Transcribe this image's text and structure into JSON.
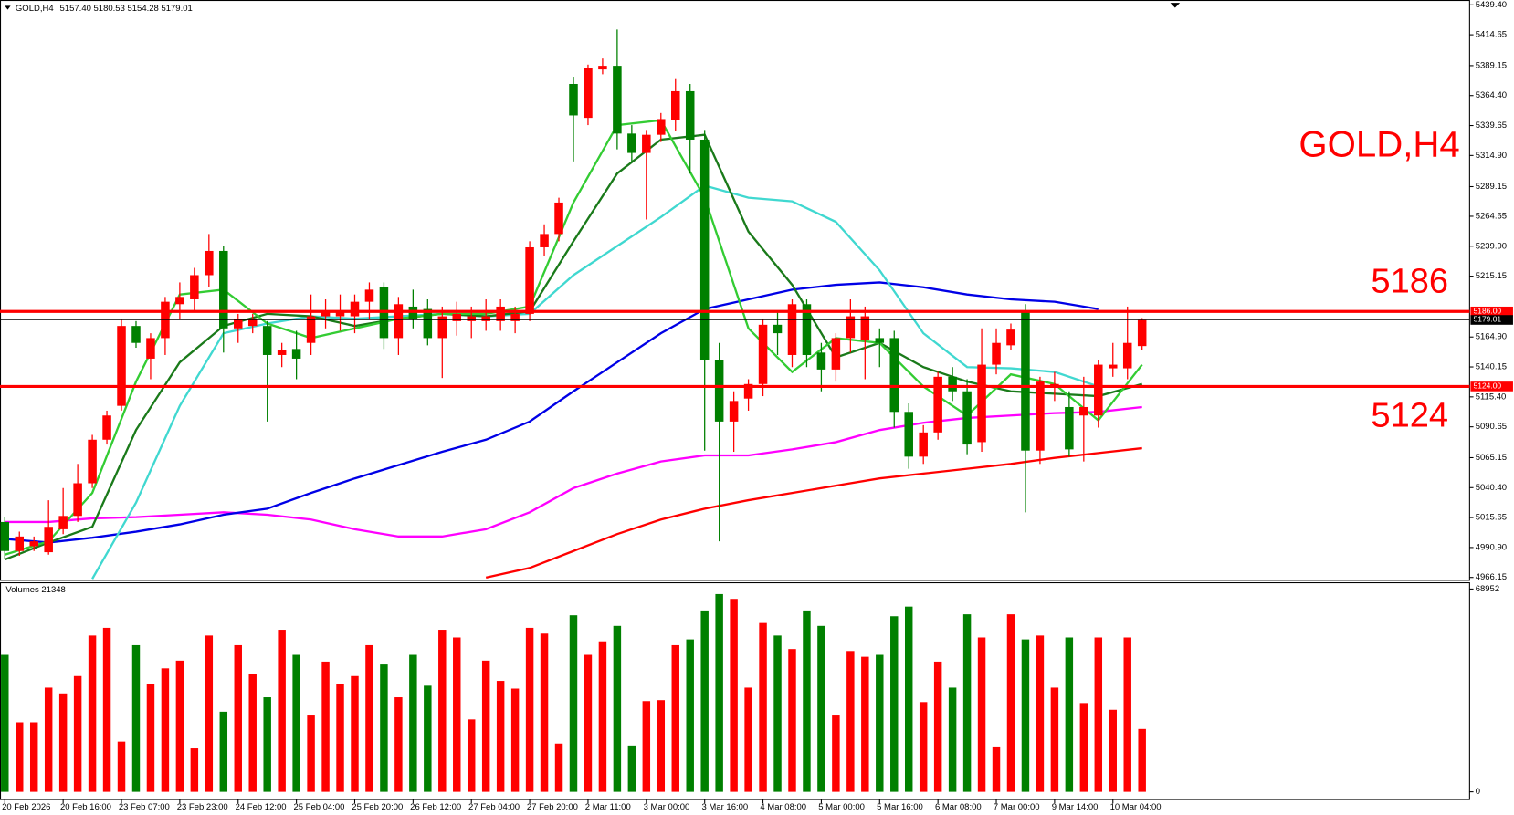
{
  "chart_data": {
    "type": "candlestick",
    "title": "GOLD,H4",
    "header_ohlc": "5157.40 5180.53 5154.28 5179.01",
    "volume_title": "Volumes 21348",
    "up_color": "#ff0000",
    "down_color": "#008000",
    "x_labels": [
      "20 Feb 2026",
      "20 Feb 16:00",
      "23 Feb 07:00",
      "23 Feb 23:00",
      "24 Feb 12:00",
      "25 Feb 04:00",
      "25 Feb 20:00",
      "26 Feb 12:00",
      "27 Feb 04:00",
      "27 Feb 20:00",
      "2 Mar 11:00",
      "3 Mar 00:00",
      "3 Mar 16:00",
      "4 Mar 08:00",
      "5 Mar 00:00",
      "5 Mar 16:00",
      "6 Mar 08:00",
      "7 Mar 00:00",
      "9 Mar 14:00",
      "10 Mar 04:00"
    ],
    "open": [
      5012,
      4988,
      4992,
      4987,
      5006,
      5017,
      5044,
      5080,
      5108,
      5174,
      5147,
      5164,
      5192,
      5196,
      5216,
      5236,
      5172,
      5174,
      5174,
      5150,
      5155,
      5160,
      5182,
      5182,
      5182,
      5194,
      5206,
      5164,
      5190,
      5188,
      5164,
      5178,
      5178,
      5178,
      5178,
      5178,
      5184,
      5239,
      5250,
      5374,
      5346,
      5386,
      5389,
      5333,
      5317,
      5332,
      5344,
      5368,
      5328,
      5146,
      5095,
      5114,
      5126,
      5175,
      5150,
      5192,
      5152,
      5138,
      5164,
      5162,
      5164,
      5164,
      5103,
      5066,
      5086,
      5132,
      5120,
      5078,
      5142,
      5158,
      5186,
      5071,
      5124,
      5107,
      5100,
      5100,
      5139,
      5139,
      5157.4
    ],
    "high": [
      5016,
      5004,
      5000,
      5030,
      5040,
      5060,
      5084,
      5104,
      5180,
      5178,
      5168,
      5198,
      5210,
      5222,
      5250,
      5240,
      5184,
      5184,
      5178,
      5160,
      5170,
      5200,
      5196,
      5200,
      5200,
      5210,
      5210,
      5198,
      5204,
      5196,
      5190,
      5194,
      5190,
      5196,
      5196,
      5190,
      5244,
      5258,
      5280,
      5380,
      5390,
      5395,
      5419,
      5340,
      5336,
      5350,
      5378,
      5374,
      5336,
      5160,
      5120,
      5130,
      5180,
      5185,
      5196,
      5196,
      5160,
      5168,
      5196,
      5190,
      5172,
      5170,
      5110,
      5092,
      5136,
      5140,
      5130,
      5172,
      5172,
      5176,
      5192,
      5132,
      5136,
      5120,
      5132,
      5146,
      5160,
      5190,
      5180.53
    ],
    "low": [
      4981,
      4984,
      4988,
      4985,
      5002,
      5012,
      5040,
      5076,
      5104,
      5156,
      5130,
      5150,
      5180,
      5186,
      5206,
      5152,
      5160,
      5168,
      5095,
      5140,
      5130,
      5150,
      5172,
      5170,
      5168,
      5180,
      5155,
      5150,
      5172,
      5158,
      5131,
      5166,
      5164,
      5170,
      5170,
      5168,
      5178,
      5232,
      5244,
      5310,
      5340,
      5382,
      5320,
      5310,
      5262,
      5326,
      5335,
      5300,
      5071,
      4996,
      5070,
      5104,
      5116,
      5150,
      5140,
      5140,
      5120,
      5128,
      5152,
      5130,
      5140,
      5090,
      5056,
      5060,
      5080,
      5112,
      5068,
      5070,
      5134,
      5154,
      5020,
      5060,
      5112,
      5066,
      5062,
      5090,
      5132,
      5130,
      5154.28
    ],
    "close": [
      4988,
      5000,
      4996,
      5008,
      5017,
      5044,
      5080,
      5100,
      5174,
      5160,
      5164,
      5194,
      5198,
      5216,
      5236,
      5172,
      5180,
      5180,
      5150,
      5154,
      5147,
      5182,
      5186,
      5186,
      5194,
      5204,
      5164,
      5192,
      5180,
      5164,
      5182,
      5184,
      5182,
      5182,
      5190,
      5184,
      5239,
      5250,
      5276,
      5348,
      5387,
      5389,
      5333,
      5317,
      5332,
      5345,
      5368,
      5328,
      5146,
      5095,
      5112,
      5126,
      5175,
      5168,
      5192,
      5150,
      5138,
      5164,
      5182,
      5182,
      5160,
      5103,
      5066,
      5086,
      5132,
      5120,
      5076,
      5142,
      5160,
      5171,
      5071,
      5128,
      5126,
      5072,
      5107,
      5142,
      5142,
      5160,
      5179.01
    ],
    "volume": [
      46576,
      23616,
      23616,
      35424,
      33456,
      39360,
      53136,
      55760,
      17056,
      49856,
      36736,
      41984,
      44608,
      14760,
      53136,
      27224,
      49856,
      40016,
      32144,
      55104,
      46576,
      26240,
      44280,
      36736,
      39360,
      49856,
      43296,
      32144,
      46576,
      36080,
      55104,
      52480,
      24600,
      44608,
      37720,
      35096,
      55760,
      53792,
      16400,
      60024,
      46576,
      51168,
      56416,
      15744,
      30832,
      31160,
      49856,
      51824,
      61664,
      67240,
      65600,
      35424,
      57400,
      53136,
      48544,
      61664,
      56416,
      26240,
      47888,
      45920,
      46576,
      59696,
      62976,
      30504,
      44280,
      35424,
      60352,
      52480,
      15416,
      60352,
      51824,
      53136,
      35424,
      52480,
      30176,
      52480,
      27880,
      52480,
      21348
    ],
    "ylim": [
      4966.15,
      5439.4
    ],
    "yticks": [
      {
        "value": 5439.4,
        "label": "5439.40"
      },
      {
        "value": 5414.65,
        "label": "5414.65"
      },
      {
        "value": 5389.15,
        "label": "5389.15"
      },
      {
        "value": 5364.4,
        "label": "5364.40"
      },
      {
        "value": 5339.65,
        "label": "5339.65"
      },
      {
        "value": 5314.9,
        "label": "5314.90"
      },
      {
        "value": 5289.15,
        "label": "5289.15"
      },
      {
        "value": 5264.65,
        "label": "5264.65"
      },
      {
        "value": 5239.9,
        "label": "5239.90"
      },
      {
        "value": 5215.15,
        "label": "5215.15"
      },
      {
        "value": 5164.9,
        "label": "5164.90"
      },
      {
        "value": 5140.15,
        "label": "5140.15"
      },
      {
        "value": 5115.4,
        "label": "5115.40"
      },
      {
        "value": 5090.65,
        "label": "5090.65"
      },
      {
        "value": 5065.15,
        "label": "5065.15"
      },
      {
        "value": 5040.4,
        "label": "5040.40"
      },
      {
        "value": 5015.65,
        "label": "5015.65"
      },
      {
        "value": 4990.9,
        "label": "4990.90"
      },
      {
        "value": 4966.15,
        "label": "4966.15"
      }
    ],
    "vlim": [
      0,
      68952
    ],
    "vticks": [
      68952,
      0
    ],
    "levels": [
      {
        "value": 5186,
        "label": "5186",
        "axis_label": "5186.00",
        "color": "#ff0000"
      },
      {
        "value": 5124,
        "label": "5124",
        "axis_label": "5124.00",
        "color": "#ff0000"
      }
    ],
    "last_price": {
      "value": 5179.01,
      "axis_label": "5179.01"
    },
    "moving_averages": [
      {
        "color": "#ff0000",
        "x": [
          0,
          3,
          6,
          9,
          12,
          15,
          18,
          21,
          24,
          27,
          30,
          33,
          36,
          39,
          42,
          45,
          48,
          51,
          54,
          57,
          60,
          63,
          66,
          69,
          72,
          75,
          78
        ],
        "values": [
          null,
          null,
          null,
          null,
          null,
          null,
          null,
          null,
          null,
          null,
          null,
          4966,
          4974,
          4988,
          5002,
          5014,
          5023,
          5030,
          5036,
          5042,
          5048,
          5052,
          5056,
          5060,
          5065,
          5069,
          5073
        ]
      },
      {
        "color": "#ff00ff",
        "x": [
          0,
          3,
          6,
          9,
          12,
          15,
          18,
          21,
          24,
          27,
          30,
          33,
          36,
          39,
          42,
          45,
          48,
          51,
          54,
          57,
          60,
          63,
          66,
          69,
          72,
          75,
          78
        ],
        "values": [
          5012,
          5012,
          5015,
          5016,
          5018,
          5020,
          5018,
          5014,
          5006,
          5000,
          5000,
          5006,
          5020,
          5040,
          5052,
          5062,
          5067,
          5067,
          5072,
          5078,
          5088,
          5094,
          5098,
          5100,
          5102,
          5103,
          5107
        ]
      },
      {
        "color": "#0000e6",
        "x": [
          0,
          3,
          6,
          9,
          12,
          15,
          18,
          21,
          24,
          27,
          30,
          33,
          36,
          39,
          42,
          45,
          48,
          51,
          54,
          57,
          60,
          63,
          66,
          69,
          72,
          75,
          78
        ],
        "values": [
          4998,
          4995,
          4999,
          5004,
          5010,
          5018,
          5023,
          5036,
          5048,
          5059,
          5070,
          5080,
          5095,
          5120,
          5144,
          5168,
          5188,
          5196,
          5204,
          5208,
          5210,
          5206,
          5200,
          5196,
          5194,
          5188,
          null
        ]
      },
      {
        "color": "#40d8d0",
        "x": [
          0,
          3,
          6,
          9,
          12,
          15,
          18,
          21,
          24,
          27,
          30,
          33,
          36,
          39,
          42,
          45,
          48,
          51,
          54,
          57,
          60,
          63,
          66,
          69,
          72,
          75,
          78
        ],
        "values": [
          null,
          null,
          4965,
          5028,
          5108,
          5168,
          5176,
          5182,
          5180,
          5182,
          5184,
          5182,
          5184,
          5216,
          5240,
          5264,
          5290,
          5280,
          5277,
          5260,
          5220,
          5168,
          5140,
          5139,
          5136,
          5124,
          null
        ]
      },
      {
        "color": "#1a7a1a",
        "x": [
          0,
          3,
          6,
          9,
          12,
          15,
          18,
          21,
          24,
          27,
          30,
          33,
          36,
          39,
          42,
          45,
          48,
          51,
          54,
          57,
          60,
          63,
          66,
          69,
          72,
          75,
          78
        ],
        "values": [
          4981,
          4995,
          5008,
          5088,
          5144,
          5174,
          5184,
          5182,
          5174,
          5180,
          5184,
          5182,
          5186,
          5244,
          5300,
          5328,
          5332,
          5252,
          5208,
          5148,
          5160,
          5140,
          5128,
          5120,
          5118,
          5116,
          5126
        ]
      },
      {
        "color": "#33cc33",
        "x": [
          0,
          3,
          6,
          9,
          12,
          15,
          18,
          21,
          24,
          27,
          30,
          33,
          36,
          39,
          42,
          45,
          48,
          51,
          54,
          57,
          60,
          63,
          66,
          69,
          72,
          75,
          78
        ],
        "values": [
          4985,
          4996,
          5036,
          5128,
          5200,
          5204,
          5176,
          5164,
          5172,
          5180,
          5184,
          5184,
          5190,
          5276,
          5340,
          5344,
          5280,
          5172,
          5136,
          5164,
          5160,
          5124,
          5100,
          5134,
          5126,
          5096,
          5142
        ]
      }
    ]
  }
}
